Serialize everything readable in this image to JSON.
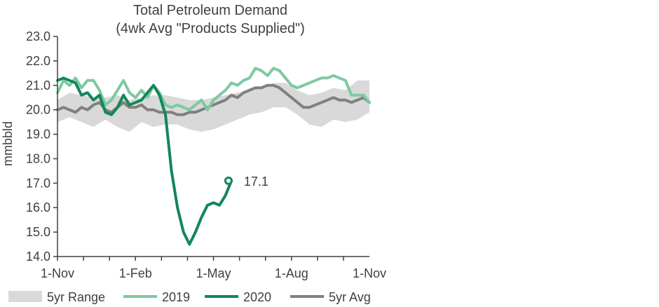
{
  "chart_data": {
    "type": "line",
    "title": "Total Petroleum Demand",
    "subtitle": "(4wk Avg  \"Products Supplied\")",
    "ylabel": "mmbbld",
    "xlabel": "",
    "ylim": [
      14.0,
      23.0
    ],
    "yticks": [
      "14.0",
      "15.0",
      "16.0",
      "17.0",
      "18.0",
      "19.0",
      "20.0",
      "21.0",
      "22.0",
      "23.0"
    ],
    "xlim": [
      0,
      52
    ],
    "xticks": [
      {
        "label": "1-Nov",
        "week": 0
      },
      {
        "label": "1-Feb",
        "week": 13
      },
      {
        "label": "1-May",
        "week": 26
      },
      {
        "label": "1-Aug",
        "week": 39
      },
      {
        "label": "1-Nov",
        "week": 52
      }
    ],
    "annotation": {
      "text": "17.1",
      "week": 28.5,
      "value": 17.1
    },
    "legend": [
      "5yr Range",
      "2019",
      "2020",
      "5yr Avg"
    ],
    "colors": {
      "range": "#d9d9d9",
      "y2019": "#7ec9a0",
      "y2020": "#12875a",
      "avg": "#808080",
      "axis": "#404040"
    },
    "series": [
      {
        "name": "5yr Range",
        "x": [
          0,
          2,
          4,
          6,
          8,
          10,
          12,
          14,
          16,
          18,
          20,
          22,
          24,
          26,
          28,
          30,
          32,
          34,
          36,
          38,
          40,
          42,
          44,
          46,
          48,
          50,
          52
        ],
        "low": [
          19.5,
          19.7,
          19.5,
          19.3,
          19.6,
          19.3,
          19.1,
          19.5,
          19.3,
          19.4,
          19.4,
          19.2,
          19.1,
          19.2,
          19.4,
          19.6,
          19.8,
          19.9,
          20.1,
          20.1,
          19.8,
          19.4,
          19.3,
          19.6,
          19.5,
          19.6,
          19.9
        ],
        "high": [
          20.4,
          20.7,
          20.6,
          20.5,
          20.5,
          20.6,
          20.4,
          20.5,
          20.6,
          20.6,
          20.5,
          20.4,
          20.4,
          20.5,
          20.6,
          20.7,
          20.8,
          20.9,
          21.1,
          21.1,
          20.8,
          20.6,
          20.7,
          20.9,
          20.8,
          21.2,
          21.2
        ]
      },
      {
        "name": "2019",
        "x": [
          0,
          1,
          2,
          3,
          4,
          5,
          6,
          7,
          8,
          9,
          10,
          11,
          12,
          13,
          14,
          15,
          16,
          17,
          18,
          19,
          20,
          21,
          22,
          23,
          24,
          25,
          26,
          27,
          28,
          29,
          30,
          31,
          32,
          33,
          34,
          35,
          36,
          37,
          38,
          39,
          40,
          41,
          42,
          43,
          44,
          45,
          46,
          47,
          48,
          49,
          50,
          51,
          52
        ],
        "values": [
          20.7,
          21.2,
          21.0,
          21.3,
          20.9,
          21.2,
          21.2,
          20.8,
          20.2,
          20.4,
          20.8,
          21.2,
          20.7,
          20.5,
          20.8,
          20.5,
          21.0,
          20.7,
          20.2,
          20.1,
          20.2,
          20.1,
          20.0,
          20.2,
          20.4,
          20.0,
          20.4,
          20.6,
          20.8,
          21.1,
          21.0,
          21.2,
          21.3,
          21.7,
          21.6,
          21.4,
          21.7,
          21.6,
          21.3,
          21.0,
          20.9,
          21.0,
          21.1,
          21.2,
          21.3,
          21.3,
          21.4,
          21.3,
          21.2,
          20.6,
          20.6,
          20.6,
          20.3
        ]
      },
      {
        "name": "2020",
        "x": [
          0,
          1,
          2,
          3,
          4,
          5,
          6,
          7,
          8,
          9,
          10,
          11,
          12,
          13,
          14,
          15,
          16,
          17,
          18,
          19,
          20,
          21,
          22,
          23,
          24,
          25,
          26,
          27,
          28,
          29
        ],
        "values": [
          21.2,
          21.3,
          21.2,
          21.1,
          20.6,
          20.7,
          20.4,
          20.6,
          19.9,
          19.8,
          20.1,
          20.6,
          20.2,
          20.3,
          20.4,
          20.7,
          21.0,
          20.6,
          19.8,
          17.5,
          16.0,
          15.0,
          14.5,
          15.0,
          15.6,
          16.1,
          16.2,
          16.1,
          16.5,
          17.1
        ]
      },
      {
        "name": "5yr Avg",
        "x": [
          0,
          1,
          2,
          3,
          4,
          5,
          6,
          7,
          8,
          9,
          10,
          11,
          12,
          13,
          14,
          15,
          16,
          17,
          18,
          19,
          20,
          21,
          22,
          23,
          24,
          25,
          26,
          27,
          28,
          29,
          30,
          31,
          32,
          33,
          34,
          35,
          36,
          37,
          38,
          39,
          40,
          41,
          42,
          43,
          44,
          45,
          46,
          47,
          48,
          49,
          50,
          51,
          52
        ],
        "values": [
          20.0,
          20.1,
          20.0,
          19.9,
          20.1,
          20.0,
          20.2,
          20.3,
          20.0,
          19.9,
          20.1,
          20.3,
          20.1,
          20.1,
          20.2,
          20.0,
          20.0,
          19.9,
          19.9,
          19.9,
          19.8,
          19.8,
          19.9,
          19.9,
          20.0,
          20.1,
          20.2,
          20.3,
          20.4,
          20.6,
          20.5,
          20.7,
          20.8,
          20.9,
          20.9,
          21.0,
          21.0,
          20.9,
          20.7,
          20.5,
          20.3,
          20.1,
          20.1,
          20.2,
          20.3,
          20.4,
          20.5,
          20.4,
          20.4,
          20.3,
          20.4,
          20.5,
          20.3
        ]
      }
    ]
  }
}
